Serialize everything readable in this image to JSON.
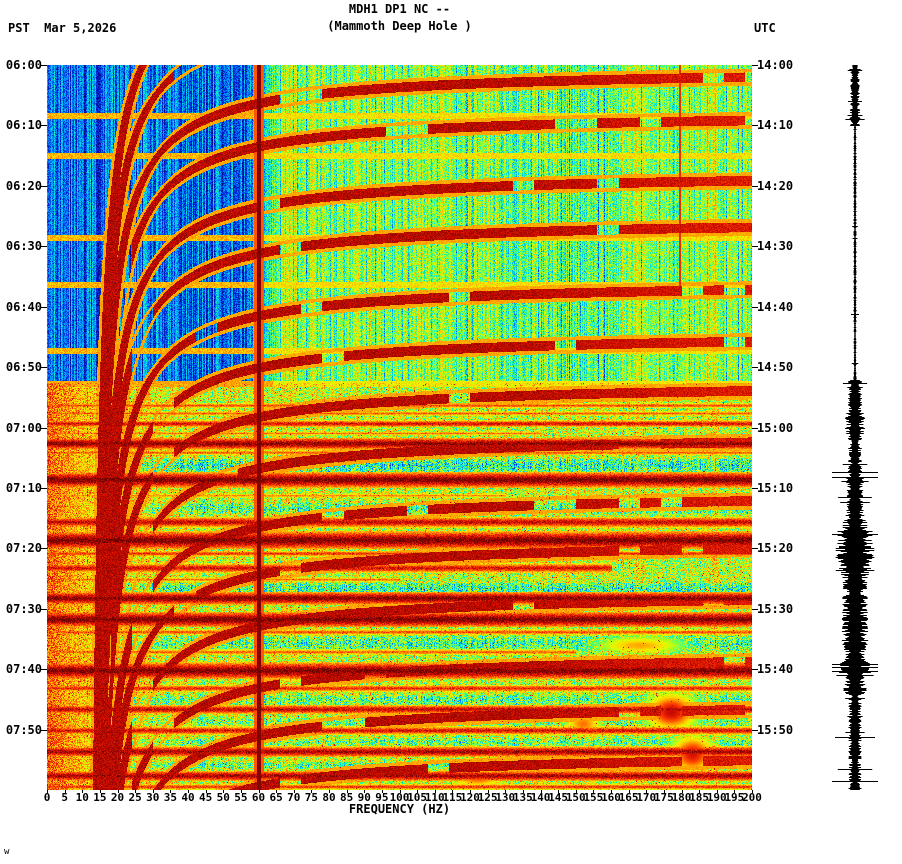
{
  "header": {
    "title": "MDH1 DP1 NC --",
    "subtitle": "(Mammoth Deep Hole )",
    "left_tz_date": "PST  Mar 5,2026",
    "right_tz": "UTC"
  },
  "axes": {
    "xlabel": "FREQUENCY (HZ)",
    "x_ticks": [
      "0",
      "5",
      "10",
      "15",
      "20",
      "25",
      "30",
      "35",
      "40",
      "45",
      "50",
      "55",
      "60",
      "65",
      "70",
      "75",
      "80",
      "85",
      "90",
      "95",
      "100",
      "105",
      "110",
      "115",
      "120",
      "125",
      "130",
      "135",
      "140",
      "145",
      "150",
      "155",
      "160",
      "165",
      "170",
      "175",
      "180",
      "185",
      "190",
      "195",
      "200"
    ],
    "left_times": [
      "06:00",
      "06:10",
      "06:20",
      "06:30",
      "06:40",
      "06:50",
      "07:00",
      "07:10",
      "07:20",
      "07:30",
      "07:40",
      "07:50"
    ],
    "right_times": [
      "14:00",
      "14:10",
      "14:20",
      "14:30",
      "14:40",
      "14:50",
      "15:00",
      "15:10",
      "15:20",
      "15:30",
      "15:40",
      "15:50"
    ]
  },
  "footer_mark": "w",
  "chart_data": {
    "type": "heatmap",
    "subtype": "seismic_spectrogram",
    "station": "MDH1 DP1 NC --",
    "station_name": "(Mammoth Deep Hole )",
    "date": "Mar 5,2026",
    "xlabel": "FREQUENCY (HZ)",
    "x_range_hz": [
      0,
      200
    ],
    "x_tick_step_hz": 5,
    "y_left": {
      "timezone": "PST",
      "start": "06:00",
      "end": "08:00",
      "tick_interval_min": 10,
      "labels": [
        "06:00",
        "06:10",
        "06:20",
        "06:30",
        "06:40",
        "06:50",
        "07:00",
        "07:10",
        "07:20",
        "07:30",
        "07:40",
        "07:50"
      ]
    },
    "y_right": {
      "timezone": "UTC",
      "start": "14:00",
      "end": "16:00",
      "tick_interval_min": 10,
      "labels": [
        "14:00",
        "14:10",
        "14:20",
        "14:30",
        "14:40",
        "14:50",
        "15:00",
        "15:10",
        "15:20",
        "15:30",
        "15:40",
        "15:50"
      ]
    },
    "time_span_minutes": 120,
    "colormap": {
      "type": "jet-like",
      "low_power": "#0a28d2",
      "mid_power": "#a0ff28",
      "high_power": "#ff9600",
      "max_power": "#690000"
    },
    "features": {
      "powerline_artifact_hz": 60,
      "vertical_artifact_hz": 180,
      "quiet_blue_region": {
        "pst_start": "06:00",
        "pst_end": "06:53",
        "freq_hz": [
          0,
          56
        ]
      },
      "repeating_glide_arcs": {
        "count": 14,
        "repeat_minutes": 9,
        "freq_sweep_hz": [
          15,
          200
        ],
        "shape": "hyperbolic sweeps, steep at low frequency flattening toward high frequency",
        "color": "dark red"
      },
      "broadband_bands_pst": [
        "06:56",
        "06:58",
        "06:59",
        "07:03",
        "07:04",
        "07:09",
        "07:16",
        "07:19",
        "07:21",
        "07:23",
        "07:28",
        "07:32",
        "07:34",
        "07:40",
        "07:43",
        "07:47",
        "07:50",
        "07:54",
        "07:58"
      ],
      "hot_low_frequency_strip_hz": [
        0,
        16
      ],
      "side_trace": "vertical seismogram; quiet 14:10-14:52 UTC, strong bursts 14:53-15:50 UTC"
    }
  }
}
